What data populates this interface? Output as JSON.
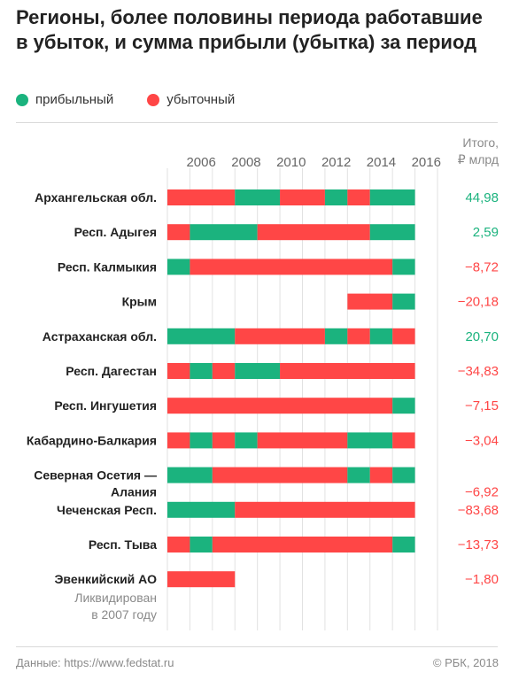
{
  "title": "Регионы, более половины периода работавшие в убыток, и сумма прибыли (убытка) за период",
  "legend": {
    "profit": {
      "label": "прибыльный",
      "color": "#1bb37e"
    },
    "loss": {
      "label": "убыточный",
      "color": "#ff4646"
    }
  },
  "totals_header": {
    "line1": "Итого,",
    "line2": "₽ млрд"
  },
  "footer": {
    "source": "Данные: https://www.fedstat.ru",
    "copyright": "© РБК, 2018"
  },
  "chart_data": {
    "type": "bar",
    "x_ticks": [
      "2006",
      "2008",
      "2010",
      "2012",
      "2014",
      "2016"
    ],
    "x_range": [
      2005,
      2017
    ],
    "regions": [
      {
        "name": "Архангельская обл.",
        "total": "44,98",
        "total_sign": "positive",
        "segments": [
          {
            "from": 2005,
            "to": 2008,
            "status": "loss"
          },
          {
            "from": 2008,
            "to": 2010,
            "status": "profit"
          },
          {
            "from": 2010,
            "to": 2012,
            "status": "loss"
          },
          {
            "from": 2012,
            "to": 2013,
            "status": "profit"
          },
          {
            "from": 2013,
            "to": 2014,
            "status": "loss"
          },
          {
            "from": 2014,
            "to": 2016,
            "status": "profit"
          }
        ]
      },
      {
        "name": "Респ. Адыгея",
        "total": "2,59",
        "total_sign": "positive",
        "segments": [
          {
            "from": 2005,
            "to": 2006,
            "status": "loss"
          },
          {
            "from": 2006,
            "to": 2009,
            "status": "profit"
          },
          {
            "from": 2009,
            "to": 2014,
            "status": "loss"
          },
          {
            "from": 2014,
            "to": 2016,
            "status": "profit"
          }
        ]
      },
      {
        "name": "Респ. Калмыкия",
        "total": "−8,72",
        "total_sign": "negative",
        "segments": [
          {
            "from": 2005,
            "to": 2006,
            "status": "profit"
          },
          {
            "from": 2006,
            "to": 2015,
            "status": "loss"
          },
          {
            "from": 2015,
            "to": 2016,
            "status": "profit"
          }
        ]
      },
      {
        "name": "Крым",
        "total": "−20,18",
        "total_sign": "negative",
        "segments": [
          {
            "from": 2013,
            "to": 2015,
            "status": "loss"
          },
          {
            "from": 2015,
            "to": 2016,
            "status": "profit"
          }
        ]
      },
      {
        "name": "Астраханская обл.",
        "total": "20,70",
        "total_sign": "positive",
        "segments": [
          {
            "from": 2005,
            "to": 2008,
            "status": "profit"
          },
          {
            "from": 2008,
            "to": 2012,
            "status": "loss"
          },
          {
            "from": 2012,
            "to": 2013,
            "status": "profit"
          },
          {
            "from": 2013,
            "to": 2014,
            "status": "loss"
          },
          {
            "from": 2014,
            "to": 2015,
            "status": "profit"
          },
          {
            "from": 2015,
            "to": 2016,
            "status": "loss"
          }
        ]
      },
      {
        "name": "Респ. Дагестан",
        "total": "−34,83",
        "total_sign": "negative",
        "segments": [
          {
            "from": 2005,
            "to": 2006,
            "status": "loss"
          },
          {
            "from": 2006,
            "to": 2007,
            "status": "profit"
          },
          {
            "from": 2007,
            "to": 2008,
            "status": "loss"
          },
          {
            "from": 2008,
            "to": 2010,
            "status": "profit"
          },
          {
            "from": 2010,
            "to": 2016,
            "status": "loss"
          }
        ]
      },
      {
        "name": "Респ. Ингушетия",
        "total": "−7,15",
        "total_sign": "negative",
        "segments": [
          {
            "from": 2005,
            "to": 2015,
            "status": "loss"
          },
          {
            "from": 2015,
            "to": 2016,
            "status": "profit"
          }
        ]
      },
      {
        "name": "Кабардино-Балкария",
        "total": "−3,04",
        "total_sign": "negative",
        "segments": [
          {
            "from": 2005,
            "to": 2006,
            "status": "loss"
          },
          {
            "from": 2006,
            "to": 2007,
            "status": "profit"
          },
          {
            "from": 2007,
            "to": 2008,
            "status": "loss"
          },
          {
            "from": 2008,
            "to": 2009,
            "status": "profit"
          },
          {
            "from": 2009,
            "to": 2013,
            "status": "loss"
          },
          {
            "from": 2013,
            "to": 2015,
            "status": "profit"
          },
          {
            "from": 2015,
            "to": 2016,
            "status": "loss"
          }
        ]
      },
      {
        "name_line1": "Северная Осетия —",
        "name_line2": "Алания",
        "total": "−6,92",
        "total_sign": "negative",
        "segments": [
          {
            "from": 2005,
            "to": 2007,
            "status": "profit"
          },
          {
            "from": 2007,
            "to": 2013,
            "status": "loss"
          },
          {
            "from": 2013,
            "to": 2014,
            "status": "profit"
          },
          {
            "from": 2014,
            "to": 2015,
            "status": "loss"
          },
          {
            "from": 2015,
            "to": 2016,
            "status": "profit"
          }
        ]
      },
      {
        "name": "Чеченская Респ.",
        "total": "−83,68",
        "total_sign": "negative",
        "segments": [
          {
            "from": 2005,
            "to": 2008,
            "status": "profit"
          },
          {
            "from": 2008,
            "to": 2016,
            "status": "loss"
          }
        ]
      },
      {
        "name": "Респ. Тыва",
        "total": "−13,73",
        "total_sign": "negative",
        "segments": [
          {
            "from": 2005,
            "to": 2006,
            "status": "loss"
          },
          {
            "from": 2006,
            "to": 2007,
            "status": "profit"
          },
          {
            "from": 2007,
            "to": 2015,
            "status": "loss"
          },
          {
            "from": 2015,
            "to": 2016,
            "status": "profit"
          }
        ]
      },
      {
        "name": "Эвенкийский АО",
        "note_line1": "Ликвидирован",
        "note_line2": "в 2007 году",
        "total": "−1,80",
        "total_sign": "negative",
        "segments": [
          {
            "from": 2005,
            "to": 2008,
            "status": "loss"
          }
        ]
      }
    ]
  }
}
